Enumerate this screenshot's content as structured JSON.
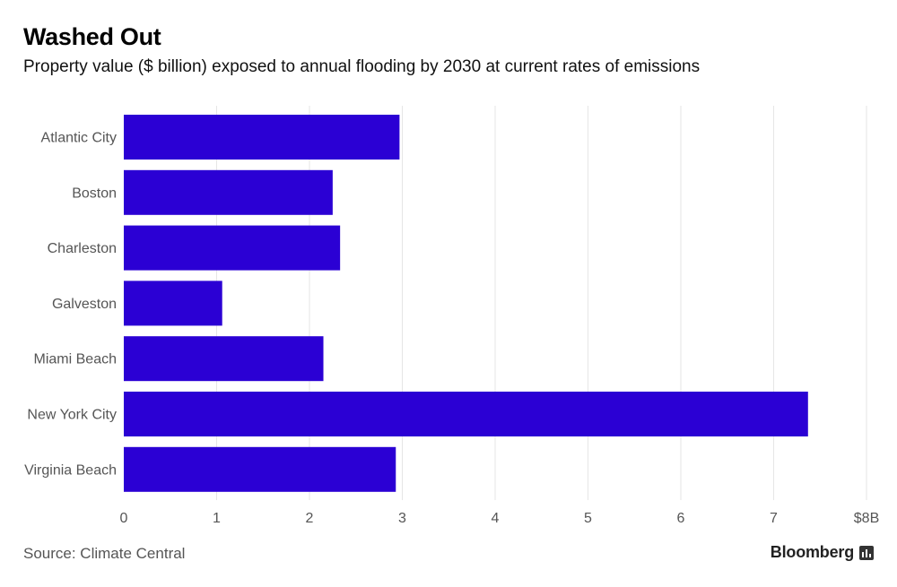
{
  "header": {
    "title": "Washed Out",
    "subtitle": "Property value ($ billion) exposed to annual flooding by 2030 at current rates of emissions"
  },
  "footer": {
    "source": "Source: Climate Central",
    "brand": "Bloomberg",
    "brand_icon": "bloomberg-chart-icon"
  },
  "colors": {
    "bar": "#2b00d4",
    "grid": "#e6e6e6",
    "tick_label": "#555555",
    "category_label": "#555555"
  },
  "chart_data": {
    "type": "bar",
    "orientation": "horizontal",
    "title": "Washed Out",
    "subtitle": "Property value ($ billion) exposed to annual flooding by 2030 at current rates of emissions",
    "categories": [
      "Atlantic City",
      "Boston",
      "Charleston",
      "Galveston",
      "Miami Beach",
      "New York City",
      "Virginia Beach"
    ],
    "values": [
      2.97,
      2.25,
      2.33,
      1.06,
      2.15,
      7.37,
      2.93
    ],
    "xlim": [
      0,
      8
    ],
    "xticks": [
      0,
      1,
      2,
      3,
      4,
      5,
      6,
      7,
      8
    ],
    "xtick_labels": [
      "0",
      "1",
      "2",
      "3",
      "4",
      "5",
      "6",
      "7",
      "$8B"
    ],
    "grid": true
  }
}
